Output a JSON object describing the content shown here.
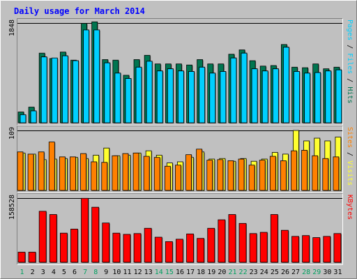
{
  "title": "Daily usage for March 2014",
  "colors": {
    "background": "#c0c0c0",
    "title": "#0000ff",
    "hits": "#007550",
    "files": "#00d0ff",
    "pages": "#0a3878",
    "visits": "#ffff30",
    "sites": "#ff8000",
    "kbytes": "#ff0000",
    "weekend_label": "#00a060",
    "weekday_label": "#000000"
  },
  "chart_data": [
    {
      "type": "bar",
      "panel": "hits-files-pages",
      "ymax_label": "1848",
      "ylim": [
        0,
        1848
      ],
      "right_label_parts": [
        {
          "text": "Pages",
          "color": "#00d0ff"
        },
        {
          "text": " / ",
          "color": "#000000"
        },
        {
          "text": "Files",
          "color": "#00d0ff"
        },
        {
          "text": " / ",
          "color": "#000000"
        },
        {
          "text": "Hits",
          "color": "#007550"
        }
      ],
      "categories": [
        "1",
        "2",
        "3",
        "4",
        "5",
        "6",
        "7",
        "8",
        "9",
        "10",
        "11",
        "12",
        "13",
        "14",
        "15",
        "16",
        "17",
        "18",
        "19",
        "20",
        "21",
        "22",
        "23",
        "24",
        "25",
        "26",
        "27",
        "28",
        "29",
        "30",
        "31"
      ],
      "series": [
        {
          "name": "Hits",
          "values": [
            200,
            290,
            1290,
            1190,
            1310,
            1160,
            1840,
            1870,
            1170,
            1160,
            880,
            1170,
            1250,
            1090,
            1090,
            1090,
            1070,
            1170,
            1090,
            1090,
            1270,
            1350,
            1150,
            1050,
            1060,
            1450,
            1030,
            1020,
            1090,
            1000,
            1030
          ]
        },
        {
          "name": "Files",
          "values": [
            150,
            220,
            1220,
            1190,
            1240,
            1150,
            1720,
            1720,
            1110,
            920,
            820,
            1030,
            1140,
            960,
            1000,
            960,
            950,
            1030,
            920,
            950,
            1200,
            1290,
            1000,
            960,
            1000,
            1400,
            950,
            920,
            930,
            960,
            980
          ]
        },
        {
          "name": "Pages",
          "values": [
            150,
            220,
            1220,
            1200,
            1240,
            1150,
            1720,
            1720,
            1110,
            920,
            820,
            1030,
            1140,
            960,
            1000,
            960,
            950,
            1030,
            920,
            950,
            1200,
            1290,
            1000,
            960,
            1000,
            1400,
            950,
            920,
            930,
            960,
            980
          ]
        }
      ]
    },
    {
      "type": "bar",
      "panel": "visits-sites",
      "ymax_label": "109",
      "ylim": [
        0,
        109
      ],
      "right_label_parts": [
        {
          "text": "Sites",
          "color": "#ff8000"
        },
        {
          "text": " / ",
          "color": "#000000"
        },
        {
          "text": "Visits",
          "color": "#ffff30"
        }
      ],
      "categories": [
        "1",
        "2",
        "3",
        "4",
        "5",
        "6",
        "7",
        "8",
        "9",
        "10",
        "11",
        "12",
        "13",
        "14",
        "15",
        "16",
        "17",
        "18",
        "19",
        "20",
        "21",
        "22",
        "23",
        "24",
        "25",
        "26",
        "27",
        "28",
        "29",
        "30",
        "31"
      ],
      "series": [
        {
          "name": "Visits",
          "values": [
            68,
            66,
            56,
            57,
            58,
            60,
            58,
            64,
            77,
            63,
            64,
            68,
            72,
            64,
            50,
            52,
            60,
            70,
            57,
            58,
            53,
            58,
            53,
            57,
            69,
            66,
            109,
            90,
            95,
            90,
            97
          ]
        },
        {
          "name": "Sites",
          "values": [
            70,
            66,
            70,
            88,
            61,
            61,
            67,
            52,
            51,
            63,
            67,
            68,
            62,
            60,
            44,
            46,
            65,
            75,
            55,
            56,
            54,
            57,
            46,
            55,
            62,
            54,
            72,
            73,
            63,
            58,
            61
          ]
        }
      ]
    },
    {
      "type": "bar",
      "panel": "kbytes",
      "ymax_label": "158528",
      "ylim": [
        0,
        158528
      ],
      "right_label_parts": [
        {
          "text": "KBytes",
          "color": "#ff0000"
        }
      ],
      "categories": [
        "1",
        "2",
        "3",
        "4",
        "5",
        "6",
        "7",
        "8",
        "9",
        "10",
        "11",
        "12",
        "13",
        "14",
        "15",
        "16",
        "17",
        "18",
        "19",
        "20",
        "21",
        "22",
        "23",
        "24",
        "25",
        "26",
        "27",
        "28",
        "29",
        "30",
        "31"
      ],
      "series": [
        {
          "name": "KBytes",
          "values": [
            25000,
            25000,
            126000,
            118000,
            72000,
            82000,
            158000,
            136000,
            97000,
            72000,
            69000,
            71000,
            84000,
            62000,
            51000,
            57000,
            70000,
            59000,
            84000,
            105000,
            118000,
            96000,
            71000,
            74000,
            118000,
            79000,
            64000,
            66000,
            61000,
            64000,
            71000
          ]
        }
      ]
    }
  ]
}
